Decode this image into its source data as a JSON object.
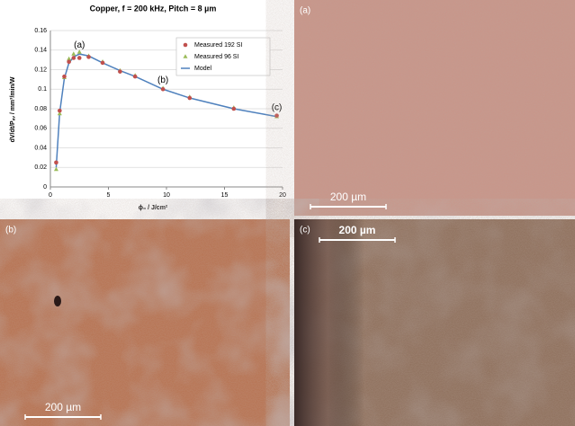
{
  "chart_data": {
    "type": "scatter",
    "title": "Copper, f = 200 kHz, Pitch = 8 µm",
    "x_label": "ϕ₀ / J/cm²",
    "y_label": "dV/dt/Pₐᵥ / mm³/min/W",
    "x": [
      0.5,
      0.8,
      1.2,
      1.6,
      2.0,
      2.5,
      3.3,
      4.5,
      6.0,
      7.3,
      9.7,
      12,
      15.8,
      19.5
    ],
    "series": [
      {
        "name": "Measured 192 SI",
        "color": "#c0504d",
        "marker": "circle",
        "values": [
          0.025,
          0.078,
          0.113,
          0.128,
          0.132,
          0.132,
          0.133,
          0.127,
          0.118,
          0.113,
          0.1,
          0.091,
          0.08,
          0.073
        ]
      },
      {
        "name": "Measured 96 SI",
        "color": "#9bbb59",
        "marker": "triangle",
        "values": [
          0.018,
          0.075,
          0.112,
          0.131,
          0.136,
          0.138,
          0.134,
          0.128,
          0.119,
          0.114,
          0.101,
          0.092,
          0.081,
          0.072
        ]
      },
      {
        "name": "Model",
        "color": "#4f81bd",
        "marker": "line",
        "values": [
          0.02,
          0.076,
          0.111,
          0.127,
          0.133,
          0.136,
          0.134,
          0.127,
          0.119,
          0.113,
          0.1,
          0.091,
          0.08,
          0.072
        ]
      }
    ],
    "annotations": [
      {
        "text": "(a)",
        "x": 2.5,
        "y": 0.145
      },
      {
        "text": "(b)",
        "x": 9.7,
        "y": 0.109
      },
      {
        "text": "(c)",
        "x": 19.5,
        "y": 0.081
      }
    ],
    "xlim": [
      0,
      20
    ],
    "xticks": [
      0,
      5,
      10,
      15,
      20
    ],
    "ylim": [
      0,
      0.16
    ],
    "yticks": [
      0,
      0.02,
      0.04,
      0.06,
      0.08,
      0.1,
      0.12,
      0.14,
      0.16
    ],
    "grid": true,
    "legend": "upper right"
  },
  "panels": [
    {
      "label": "(a)",
      "scale_bar": "200 µm"
    },
    {
      "label": "(b)",
      "scale_bar": "200 µm"
    },
    {
      "label": "(c)",
      "scale_bar": "200 µm"
    }
  ]
}
